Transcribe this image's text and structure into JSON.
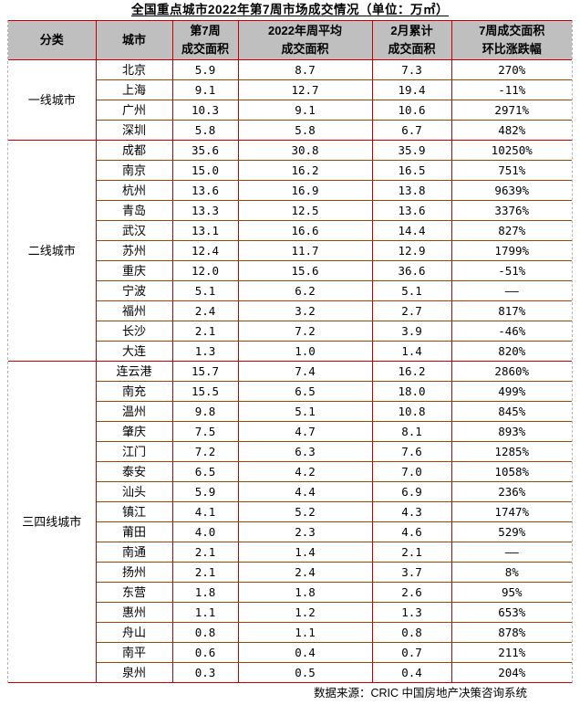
{
  "title": "全国重点城市2022年第7周市场成交情况（单位：万㎡）",
  "table": {
    "headers": {
      "category": "分类",
      "city": "城市",
      "col3_line1": "第7周",
      "col3_line2": "成交面积",
      "col4_line1": "2022年周平均",
      "col4_line2": "成交面积",
      "col5_line1": "2月累计",
      "col5_line2": "成交面积",
      "col6_line1": "7周成交面积",
      "col6_line2": "环比涨跌幅"
    },
    "groups": [
      {
        "category": "一线城市",
        "rows": [
          [
            "北京",
            "5.9",
            "8.7",
            "7.3",
            "270%"
          ],
          [
            "上海",
            "9.1",
            "12.7",
            "19.4",
            "-11%"
          ],
          [
            "广州",
            "10.3",
            "9.1",
            "10.6",
            "2971%"
          ],
          [
            "深圳",
            "5.8",
            "5.8",
            "6.7",
            "482%"
          ]
        ]
      },
      {
        "category": "二线城市",
        "rows": [
          [
            "成都",
            "35.6",
            "30.8",
            "35.9",
            "10250%"
          ],
          [
            "南京",
            "15.0",
            "16.2",
            "16.5",
            "751%"
          ],
          [
            "杭州",
            "13.6",
            "16.9",
            "13.8",
            "9639%"
          ],
          [
            "青岛",
            "13.3",
            "12.5",
            "13.6",
            "3376%"
          ],
          [
            "武汉",
            "13.1",
            "16.6",
            "14.4",
            "827%"
          ],
          [
            "苏州",
            "12.4",
            "11.7",
            "12.9",
            "1799%"
          ],
          [
            "重庆",
            "12.0",
            "15.6",
            "36.6",
            "-51%"
          ],
          [
            "宁波",
            "5.1",
            "6.2",
            "5.1",
            "——"
          ],
          [
            "福州",
            "2.4",
            "3.2",
            "2.7",
            "817%"
          ],
          [
            "长沙",
            "2.1",
            "7.2",
            "3.9",
            "-46%"
          ],
          [
            "大连",
            "1.3",
            "1.0",
            "1.4",
            "820%"
          ]
        ]
      },
      {
        "category": "三四线城市",
        "rows": [
          [
            "连云港",
            "15.7",
            "7.4",
            "16.2",
            "2860%"
          ],
          [
            "南充",
            "15.5",
            "6.5",
            "18.0",
            "499%"
          ],
          [
            "温州",
            "9.8",
            "5.1",
            "10.8",
            "845%"
          ],
          [
            "肇庆",
            "7.5",
            "4.7",
            "8.1",
            "893%"
          ],
          [
            "江门",
            "7.2",
            "6.3",
            "7.6",
            "1285%"
          ],
          [
            "泰安",
            "6.5",
            "4.2",
            "7.0",
            "1058%"
          ],
          [
            "汕头",
            "5.9",
            "4.4",
            "6.9",
            "236%"
          ],
          [
            "镇江",
            "4.1",
            "5.2",
            "4.3",
            "1747%"
          ],
          [
            "莆田",
            "4.0",
            "2.3",
            "4.6",
            "529%"
          ],
          [
            "南通",
            "2.1",
            "1.4",
            "2.1",
            "——"
          ],
          [
            "扬州",
            "2.1",
            "2.4",
            "3.7",
            "8%"
          ],
          [
            "东营",
            "1.8",
            "1.8",
            "2.6",
            "95%"
          ],
          [
            "惠州",
            "1.1",
            "1.2",
            "1.3",
            "653%"
          ],
          [
            "舟山",
            "0.8",
            "1.1",
            "0.8",
            "878%"
          ],
          [
            "南平",
            "0.6",
            "0.4",
            "0.7",
            "211%"
          ],
          [
            "泉州",
            "0.3",
            "0.5",
            "0.4",
            "204%"
          ]
        ]
      }
    ]
  },
  "footer": {
    "source": "数据来源：CRIC 中国房地产决策咨询系统"
  },
  "colors": {
    "header_background": "#bfbfbf",
    "section_border": "#c00000",
    "row_border": "#974706"
  }
}
